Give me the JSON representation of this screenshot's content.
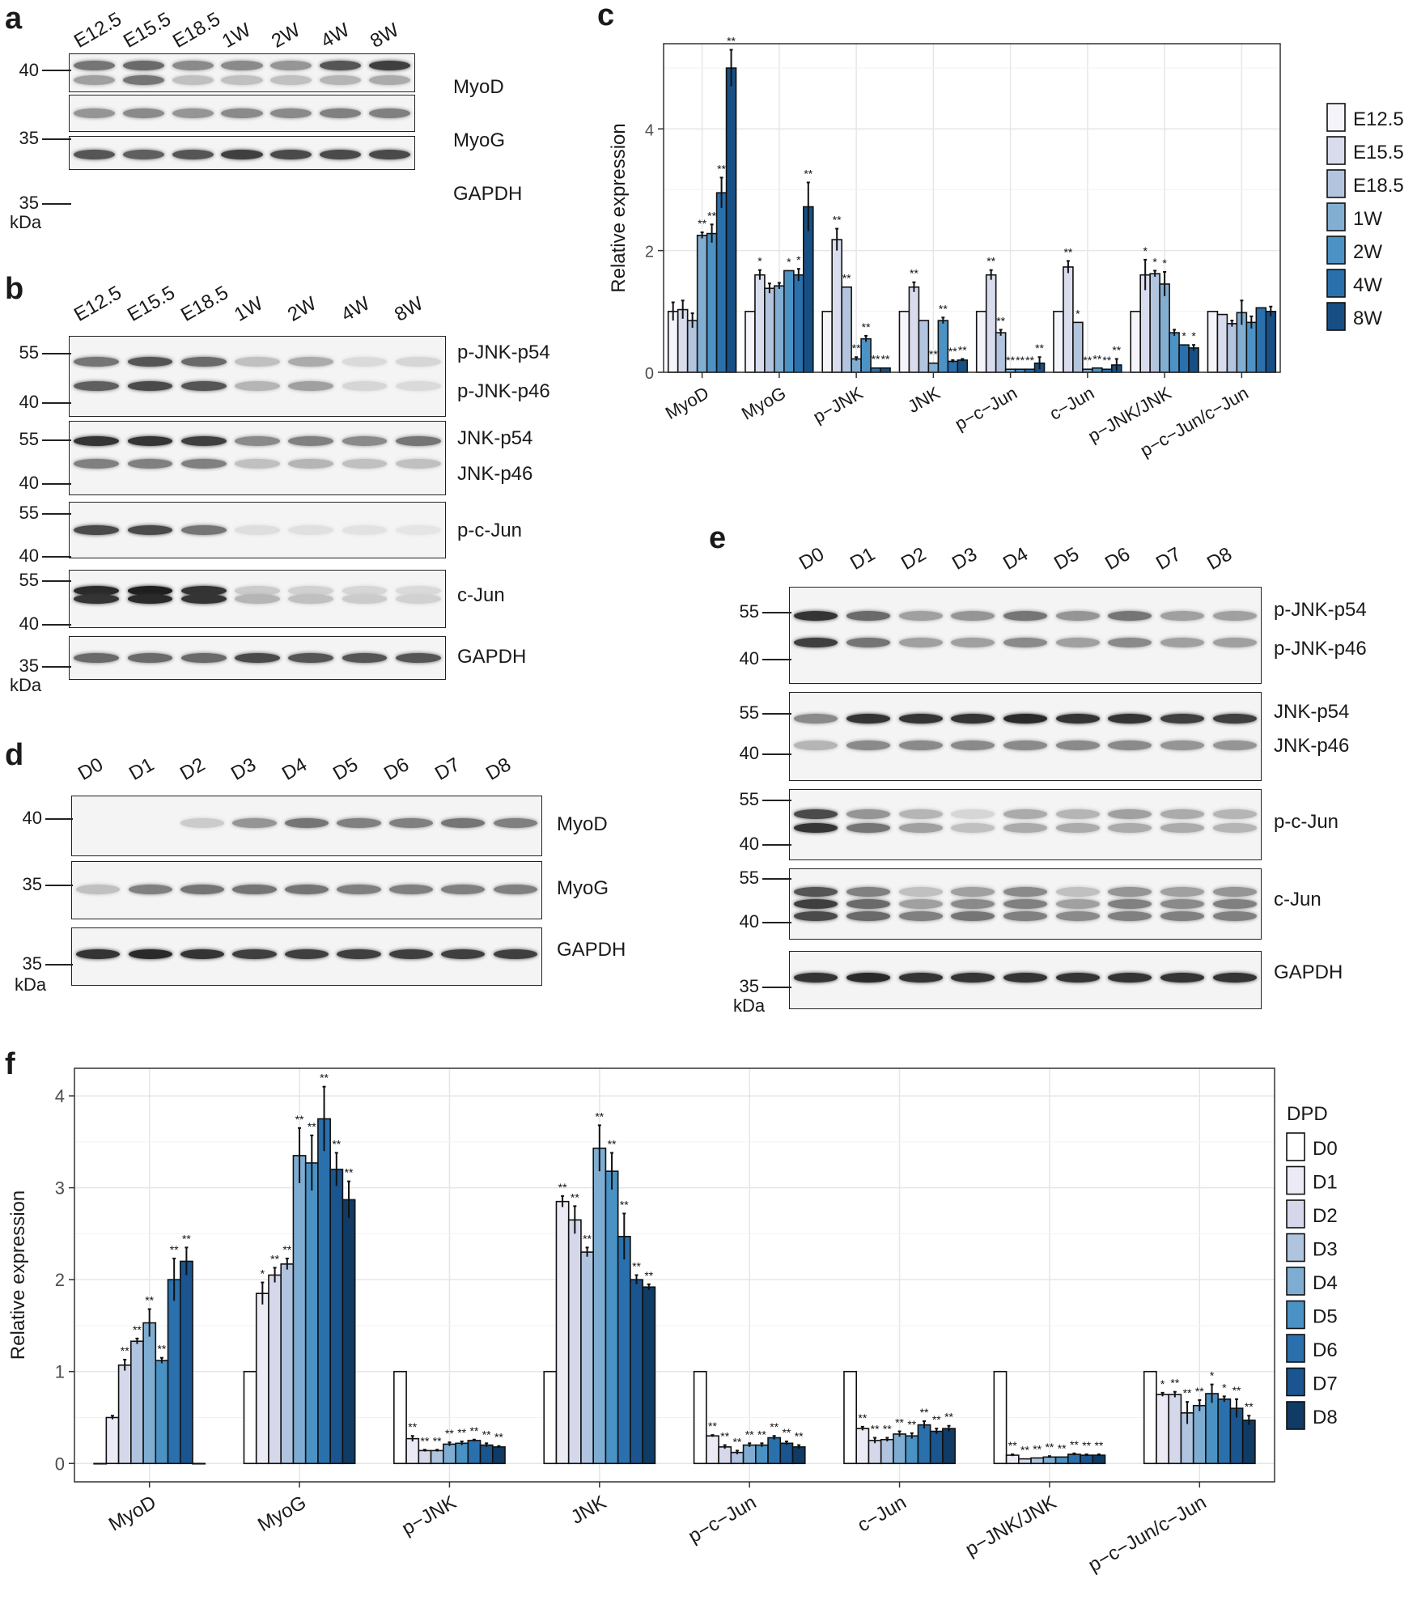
{
  "panels": {
    "a": {
      "letter": "a",
      "lanes": [
        "E12.5",
        "E15.5",
        "E18.5",
        "1W",
        "2W",
        "4W",
        "8W"
      ],
      "blots": [
        {
          "label": "MyoD",
          "mw": "40"
        },
        {
          "label": "MyoG",
          "mw": "35"
        },
        {
          "label": "GAPDH",
          "mw": "35"
        }
      ],
      "unit": "kDa"
    },
    "b": {
      "letter": "b",
      "lanes": [
        "E12.5",
        "E15.5",
        "E18.5",
        "1W",
        "2W",
        "4W",
        "8W"
      ],
      "blots": [
        {
          "labels": [
            "p-JNK-p54",
            "p-JNK-p46"
          ],
          "mw": [
            "55",
            "40"
          ]
        },
        {
          "labels": [
            "JNK-p54",
            "JNK-p46"
          ],
          "mw": [
            "55",
            "40"
          ]
        },
        {
          "labels": [
            "p-c-Jun"
          ],
          "mw": [
            "55",
            "40"
          ]
        },
        {
          "labels": [
            "c-Jun"
          ],
          "mw": [
            "55",
            "40"
          ]
        },
        {
          "labels": [
            "GAPDH"
          ],
          "mw": [
            "35"
          ]
        }
      ],
      "unit": "kDa"
    },
    "d": {
      "letter": "d",
      "lanes": [
        "D0",
        "D1",
        "D2",
        "D3",
        "D4",
        "D5",
        "D6",
        "D7",
        "D8"
      ],
      "blots": [
        {
          "label": "MyoD",
          "mw": "40"
        },
        {
          "label": "MyoG",
          "mw": "35"
        },
        {
          "label": "GAPDH",
          "mw": "35"
        }
      ],
      "unit": "kDa"
    },
    "e": {
      "letter": "e",
      "lanes": [
        "D0",
        "D1",
        "D2",
        "D3",
        "D4",
        "D5",
        "D6",
        "D7",
        "D8"
      ],
      "blots": [
        {
          "labels": [
            "p-JNK-p54",
            "p-JNK-p46"
          ],
          "mw": [
            "55",
            "40"
          ]
        },
        {
          "labels": [
            "JNK-p54",
            "JNK-p46"
          ],
          "mw": [
            "55",
            "40"
          ]
        },
        {
          "labels": [
            "p-c-Jun"
          ],
          "mw": [
            "55",
            "40"
          ]
        },
        {
          "labels": [
            "c-Jun"
          ],
          "mw": [
            "55",
            "40"
          ]
        },
        {
          "labels": [
            "GAPDH"
          ],
          "mw": [
            "35"
          ]
        }
      ],
      "unit": "kDa"
    },
    "c_letter": "c",
    "f_letter": "f"
  },
  "chart_data": [
    {
      "id": "c",
      "type": "bar",
      "ylabel": "Relative expression",
      "ylim": [
        0,
        5.4
      ],
      "yticks": [
        0,
        2,
        4
      ],
      "categories": [
        "MyoD",
        "MyoG",
        "p−JNK",
        "JNK",
        "p−c−Jun",
        "c−Jun",
        "p−JNK/JNK",
        "p−c−Jun/c−Jun"
      ],
      "legend_title": "",
      "legend_position": "right",
      "colors": [
        "#f5f4fa",
        "#d9dcec",
        "#b3c4de",
        "#82aed2",
        "#4d92c4",
        "#2a70ad",
        "#174f85"
      ],
      "series": [
        {
          "name": "E12.5",
          "values": [
            1,
            1,
            1,
            1,
            1,
            1,
            1,
            1
          ],
          "err": [
            0.15,
            0,
            0,
            0,
            0,
            0,
            0,
            0
          ],
          "sig": [
            "",
            "",
            "",
            "",
            "",
            "",
            "",
            ""
          ]
        },
        {
          "name": "E15.5",
          "values": [
            1.03,
            1.6,
            2.18,
            1.4,
            1.6,
            1.73,
            1.6,
            0.95
          ],
          "err": [
            0.15,
            0.08,
            0.18,
            0.08,
            0.08,
            0.1,
            0.25,
            0
          ],
          "sig": [
            "",
            "*",
            "**",
            "**",
            "**",
            "**",
            "*",
            ""
          ]
        },
        {
          "name": "E18.5",
          "values": [
            0.85,
            1.38,
            1.4,
            0.85,
            0.65,
            0.82,
            1.62,
            0.8
          ],
          "err": [
            0.12,
            0.08,
            0,
            0,
            0.05,
            0,
            0.05,
            0.05
          ],
          "sig": [
            "",
            "",
            "**",
            "",
            "**",
            "*",
            "*",
            ""
          ]
        },
        {
          "name": "1W",
          "values": [
            2.25,
            1.42,
            0.22,
            0.15,
            0.05,
            0.05,
            1.45,
            0.98
          ],
          "err": [
            0.05,
            0.05,
            0.03,
            0,
            0,
            0,
            0.2,
            0.2
          ],
          "sig": [
            "**",
            "",
            "**",
            "**",
            "**",
            "**",
            "*",
            ""
          ]
        },
        {
          "name": "2W",
          "values": [
            2.28,
            1.67,
            0.55,
            0.85,
            0.05,
            0.07,
            0.65,
            0.82
          ],
          "err": [
            0.15,
            0,
            0.05,
            0.05,
            0,
            0,
            0.05,
            0.1
          ],
          "sig": [
            "**",
            "*",
            "**",
            "**",
            "**",
            "**",
            "",
            ""
          ]
        },
        {
          "name": "4W",
          "values": [
            2.95,
            1.6,
            0.07,
            0.18,
            0.05,
            0.05,
            0.45,
            1.06
          ],
          "err": [
            0.25,
            0.1,
            0,
            0.02,
            0,
            0,
            0,
            0
          ],
          "sig": [
            "**",
            "*",
            "**",
            "**",
            "**",
            "**",
            "*",
            ""
          ]
        },
        {
          "name": "8W",
          "values": [
            5.0,
            2.72,
            0.07,
            0.2,
            0.15,
            0.12,
            0.4,
            1.0
          ],
          "err": [
            0.3,
            0.4,
            0,
            0.02,
            0.1,
            0.1,
            0.05,
            0.08
          ],
          "sig": [
            "**",
            "**",
            "**",
            "**",
            "**",
            "**",
            "*",
            ""
          ]
        }
      ]
    },
    {
      "id": "f",
      "type": "bar",
      "ylabel": "Relative expression",
      "ylim": [
        -0.2,
        4.3
      ],
      "yticks": [
        0,
        1,
        2,
        3,
        4
      ],
      "categories": [
        "MyoD",
        "MyoG",
        "p−JNK",
        "JNK",
        "p−c−Jun",
        "c−Jun",
        "p−JNK/JNK",
        "p−c−Jun/c−Jun"
      ],
      "legend_title": "DPD",
      "legend_position": "right",
      "colors": [
        "#ffffff",
        "#ecebf5",
        "#d5d8ea",
        "#b0c3df",
        "#7fadd2",
        "#4a91c4",
        "#2a70ad",
        "#1a558f",
        "#0f3b65"
      ],
      "series": [
        {
          "name": "D0",
          "values": [
            0,
            1,
            1,
            1,
            1,
            1,
            1,
            1
          ],
          "err": [
            0,
            0,
            0,
            0,
            0,
            0,
            0,
            0
          ],
          "sig": [
            "",
            "",
            "",
            "",
            "",
            "",
            "",
            ""
          ]
        },
        {
          "name": "D1",
          "values": [
            0.5,
            1.85,
            0.27,
            2.85,
            0.3,
            0.38,
            0.09,
            0.75
          ],
          "err": [
            0.02,
            0.12,
            0.03,
            0.06,
            0.01,
            0.02,
            0.01,
            0.02
          ],
          "sig": [
            "",
            "*",
            "**",
            "**",
            "**",
            "**",
            "**",
            "*"
          ]
        },
        {
          "name": "D2",
          "values": [
            1.07,
            2.05,
            0.14,
            2.65,
            0.18,
            0.25,
            0.05,
            0.75
          ],
          "err": [
            0.06,
            0.08,
            0.01,
            0.15,
            0.02,
            0.03,
            0,
            0.03
          ],
          "sig": [
            "**",
            "**",
            "**",
            "**",
            "**",
            "**",
            "**",
            "**"
          ]
        },
        {
          "name": "D3",
          "values": [
            1.33,
            2.17,
            0.14,
            2.3,
            0.12,
            0.26,
            0.06,
            0.55
          ],
          "err": [
            0.03,
            0.06,
            0.01,
            0.05,
            0.02,
            0.02,
            0,
            0.12
          ],
          "sig": [
            "**",
            "**",
            "**",
            "**",
            "**",
            "**",
            "**",
            "**"
          ]
        },
        {
          "name": "D4",
          "values": [
            1.53,
            3.35,
            0.21,
            3.43,
            0.2,
            0.32,
            0.07,
            0.63
          ],
          "err": [
            0.15,
            0.3,
            0.02,
            0.25,
            0.02,
            0.03,
            0.01,
            0.06
          ],
          "sig": [
            "**",
            "**",
            "**",
            "**",
            "**",
            "**",
            "**",
            "**"
          ]
        },
        {
          "name": "D5",
          "values": [
            1.12,
            3.27,
            0.22,
            3.18,
            0.2,
            0.3,
            0.07,
            0.76
          ],
          "err": [
            0.03,
            0.3,
            0.02,
            0.2,
            0.02,
            0.03,
            0,
            0.1
          ],
          "sig": [
            "**",
            "**",
            "**",
            "**",
            "**",
            "**",
            "**",
            "*"
          ]
        },
        {
          "name": "D6",
          "values": [
            2.0,
            3.75,
            0.25,
            2.47,
            0.28,
            0.42,
            0.1,
            0.7
          ],
          "err": [
            0.23,
            0.35,
            0.01,
            0.25,
            0.02,
            0.04,
            0.01,
            0.03
          ],
          "sig": [
            "**",
            "**",
            "**",
            "**",
            "**",
            "**",
            "**",
            "*"
          ]
        },
        {
          "name": "D7",
          "values": [
            2.2,
            3.2,
            0.2,
            2.0,
            0.22,
            0.35,
            0.09,
            0.6
          ],
          "err": [
            0.15,
            0.18,
            0.02,
            0.05,
            0.02,
            0.03,
            0.01,
            0.1
          ],
          "sig": [
            "**",
            "**",
            "**",
            "**",
            "**",
            "**",
            "**",
            "**"
          ]
        },
        {
          "name": "D8",
          "values": [
            0,
            2.87,
            0.18,
            1.92,
            0.18,
            0.38,
            0.09,
            0.47
          ],
          "err": [
            0,
            0.2,
            0.01,
            0.03,
            0.02,
            0.03,
            0.01,
            0.05
          ],
          "sig": [
            "",
            "**",
            "**",
            "**",
            "**",
            "**",
            "**",
            "**"
          ]
        }
      ]
    }
  ]
}
